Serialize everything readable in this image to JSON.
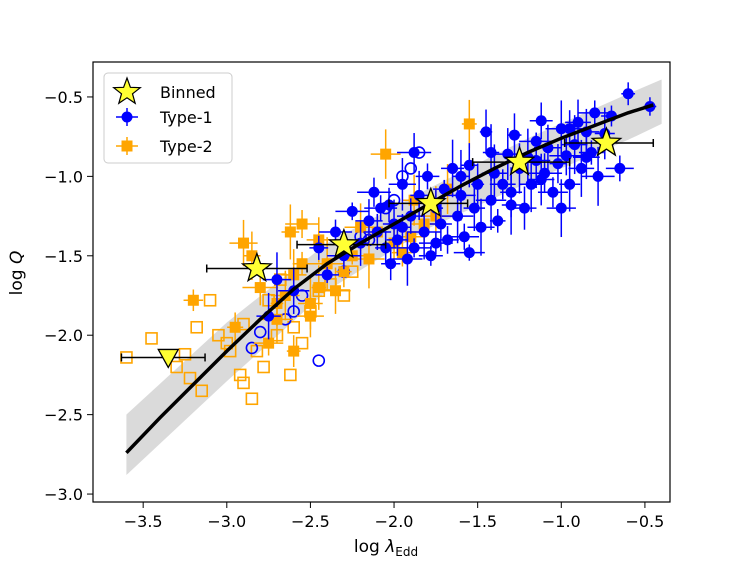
{
  "chart_data": {
    "type": "scatter",
    "title": "",
    "xlabel_text": "log",
    "xlabel_symbol": "λ",
    "xlabel_subscript": "Edd",
    "ylabel_text": "log",
    "ylabel_symbol": "Q",
    "xlim": [
      -3.8,
      -0.35
    ],
    "ylim": [
      -3.05,
      -0.28
    ],
    "x_ticks": [
      -3.5,
      -3.0,
      -2.5,
      -2.0,
      -1.5,
      -1.0,
      -0.5
    ],
    "x_tick_labels": [
      "−3.5",
      "−3.0",
      "−2.5",
      "−2.0",
      "−1.5",
      "−1.0",
      "−0.5"
    ],
    "y_ticks": [
      -3.0,
      -2.5,
      -2.0,
      -1.5,
      -1.0,
      -0.5
    ],
    "y_tick_labels": [
      "−3.0",
      "−2.5",
      "−2.0",
      "−1.5",
      "−1.0",
      "−0.5"
    ],
    "legend_position": "upper-left",
    "legend": [
      "Binned",
      "Type-1",
      "Type-2"
    ],
    "colors": {
      "type1": "#0000ff",
      "type2": "#ffa500",
      "binned": "#ffff33",
      "fit": "#000000",
      "band": "#d3d3d3"
    },
    "fit_curve": {
      "x": [
        -3.6,
        -3.4,
        -3.2,
        -3.0,
        -2.8,
        -2.6,
        -2.4,
        -2.2,
        -2.0,
        -1.8,
        -1.6,
        -1.4,
        -1.2,
        -1.0,
        -0.8,
        -0.6,
        -0.45
      ],
      "y": [
        -2.74,
        -2.52,
        -2.31,
        -2.1,
        -1.9,
        -1.71,
        -1.55,
        -1.42,
        -1.3,
        -1.18,
        -1.06,
        -0.95,
        -0.85,
        -0.76,
        -0.68,
        -0.6,
        -0.55
      ]
    },
    "band": {
      "x": [
        -3.6,
        -3.0,
        -2.4,
        -1.8,
        -1.2,
        -0.6,
        -0.4
      ],
      "upper": [
        -2.5,
        -1.92,
        -1.42,
        -1.08,
        -0.76,
        -0.48,
        -0.39
      ],
      "lower": [
        -2.88,
        -2.29,
        -1.72,
        -1.33,
        -1.04,
        -0.77,
        -0.67
      ]
    },
    "binned": [
      {
        "x": -2.82,
        "y": -1.58,
        "xerr": [
          0.3,
          0.3
        ]
      },
      {
        "x": -2.3,
        "y": -1.43,
        "xerr": [
          0.28,
          0.25
        ]
      },
      {
        "x": -1.78,
        "y": -1.17,
        "xerr": [
          0.25,
          0.22
        ]
      },
      {
        "x": -1.25,
        "y": -0.91,
        "xerr": [
          0.28,
          0.3
        ]
      },
      {
        "x": -0.73,
        "y": -0.79,
        "xerr": [
          0.25,
          0.28
        ]
      }
    ],
    "upper_limit": {
      "x": -3.35,
      "y": -2.14,
      "xerr": [
        0.28,
        0.22
      ]
    },
    "type1_filled": [
      [
        -0.47,
        -0.56
      ],
      [
        -0.6,
        -0.48
      ],
      [
        -0.7,
        -0.62
      ],
      [
        -0.74,
        -0.73
      ],
      [
        -0.8,
        -0.6
      ],
      [
        -0.82,
        -0.85
      ],
      [
        -0.85,
        -0.72
      ],
      [
        -0.88,
        -0.95
      ],
      [
        -0.9,
        -0.66
      ],
      [
        -0.92,
        -0.8
      ],
      [
        -0.95,
        -1.05
      ],
      [
        -0.97,
        -0.87
      ],
      [
        -1.0,
        -0.7
      ],
      [
        -1.02,
        -0.92
      ],
      [
        -1.05,
        -1.1
      ],
      [
        -1.08,
        -0.82
      ],
      [
        -1.1,
        -0.98
      ],
      [
        -1.12,
        -0.65
      ],
      [
        -1.15,
        -0.78
      ],
      [
        -1.18,
        -1.05
      ],
      [
        -1.2,
        -0.88
      ],
      [
        -1.22,
        -1.2
      ],
      [
        -1.25,
        -0.95
      ],
      [
        -1.28,
        -0.74
      ],
      [
        -1.3,
        -1.1
      ],
      [
        -1.32,
        -0.86
      ],
      [
        -1.35,
        -1.05
      ],
      [
        -1.38,
        -1.28
      ],
      [
        -1.4,
        -0.98
      ],
      [
        -1.42,
        -1.15
      ],
      [
        -1.45,
        -0.72
      ],
      [
        -1.48,
        -1.32
      ],
      [
        -1.5,
        -1.05
      ],
      [
        -1.52,
        -1.2
      ],
      [
        -1.55,
        -0.93
      ],
      [
        -1.58,
        -1.38
      ],
      [
        -1.6,
        -1.12
      ],
      [
        -1.62,
        -1.25
      ],
      [
        -1.65,
        -0.95
      ],
      [
        -1.68,
        -1.4
      ],
      [
        -1.7,
        -1.08
      ],
      [
        -1.72,
        -1.3
      ],
      [
        -1.75,
        -1.2
      ],
      [
        -1.78,
        -1.5
      ],
      [
        -1.8,
        -1.0
      ],
      [
        -1.82,
        -1.35
      ],
      [
        -1.85,
        -1.12
      ],
      [
        -1.88,
        -1.45
      ],
      [
        -1.9,
        -1.25
      ],
      [
        -1.92,
        -1.52
      ],
      [
        -1.95,
        -1.05
      ],
      [
        -1.98,
        -1.4
      ],
      [
        -2.0,
        -1.3
      ],
      [
        -2.03,
        -1.18
      ],
      [
        -2.05,
        -1.45
      ],
      [
        -2.1,
        -1.35
      ],
      [
        -2.12,
        -1.1
      ],
      [
        -2.15,
        -1.28
      ],
      [
        -2.2,
        -1.42
      ],
      [
        -2.25,
        -1.22
      ],
      [
        -2.3,
        -1.5
      ],
      [
        -2.35,
        -1.35
      ],
      [
        -2.4,
        -1.62
      ],
      [
        -2.45,
        -1.45
      ],
      [
        -2.6,
        -1.72
      ],
      [
        -2.7,
        -1.65
      ],
      [
        -2.75,
        -1.88
      ],
      [
        -1.3,
        -1.18
      ],
      [
        -1.0,
        -1.2
      ],
      [
        -0.95,
        -0.7
      ],
      [
        -0.85,
        -0.88
      ],
      [
        -1.15,
        -0.9
      ],
      [
        -1.55,
        -1.48
      ],
      [
        -1.75,
        -1.42
      ],
      [
        -2.02,
        -1.55
      ],
      [
        -1.88,
        -0.85
      ],
      [
        -0.65,
        -0.95
      ],
      [
        -1.42,
        -0.85
      ],
      [
        -1.12,
        -1.02
      ],
      [
        -0.78,
        -1.0
      ],
      [
        -1.6,
        -1.0
      ],
      [
        -2.08,
        -1.2
      ],
      [
        -1.95,
        -1.32
      ]
    ],
    "type1_open": [
      [
        -1.85,
        -0.85
      ],
      [
        -1.9,
        -0.95
      ],
      [
        -1.95,
        -1.0
      ],
      [
        -2.0,
        -1.15
      ],
      [
        -2.05,
        -1.2
      ],
      [
        -2.15,
        -1.4
      ],
      [
        -2.2,
        -1.38
      ],
      [
        -2.3,
        -1.6
      ],
      [
        -2.55,
        -1.75
      ],
      [
        -2.6,
        -1.85
      ],
      [
        -2.65,
        -1.9
      ],
      [
        -2.85,
        -2.08
      ],
      [
        -2.45,
        -2.16
      ],
      [
        -2.8,
        -1.98
      ]
    ],
    "type2_filled": [
      [
        -1.55,
        -0.67
      ],
      [
        -1.68,
        -1.08
      ],
      [
        -1.75,
        -1.25
      ],
      [
        -1.82,
        -1.3
      ],
      [
        -1.9,
        -1.38
      ],
      [
        -1.95,
        -1.48
      ],
      [
        -2.05,
        -0.86
      ],
      [
        -2.1,
        -1.35
      ],
      [
        -2.2,
        -1.32
      ],
      [
        -2.25,
        -1.5
      ],
      [
        -2.3,
        -1.6
      ],
      [
        -2.4,
        -1.55
      ],
      [
        -2.45,
        -1.7
      ],
      [
        -2.5,
        -1.8
      ],
      [
        -2.55,
        -1.3
      ],
      [
        -2.6,
        -1.62
      ],
      [
        -2.65,
        -1.75
      ],
      [
        -2.7,
        -1.9
      ],
      [
        -2.75,
        -2.05
      ],
      [
        -2.8,
        -1.7
      ],
      [
        -2.85,
        -1.5
      ],
      [
        -2.9,
        -1.42
      ],
      [
        -2.95,
        -1.95
      ],
      [
        -2.6,
        -2.1
      ],
      [
        -2.5,
        -1.88
      ],
      [
        -2.35,
        -1.72
      ],
      [
        -2.15,
        -1.52
      ],
      [
        -2.0,
        -1.42
      ],
      [
        -3.2,
        -1.78
      ],
      [
        -2.55,
        -1.55
      ],
      [
        -2.7,
        -1.8
      ],
      [
        -2.62,
        -1.35
      ],
      [
        -2.45,
        -1.4
      ],
      [
        -1.88,
        -1.15
      ]
    ],
    "type2_open": [
      [
        -3.6,
        -2.14
      ],
      [
        -3.45,
        -2.02
      ],
      [
        -3.3,
        -2.2
      ],
      [
        -3.22,
        -2.27
      ],
      [
        -3.18,
        -1.95
      ],
      [
        -3.1,
        -1.78
      ],
      [
        -3.05,
        -2.0
      ],
      [
        -2.98,
        -2.1
      ],
      [
        -2.92,
        -2.25
      ],
      [
        -2.85,
        -2.4
      ],
      [
        -2.78,
        -2.2
      ],
      [
        -2.7,
        -2.0
      ],
      [
        -2.62,
        -2.25
      ],
      [
        -2.55,
        -2.05
      ],
      [
        -2.5,
        -1.85
      ],
      [
        -2.45,
        -1.72
      ],
      [
        -2.38,
        -1.68
      ],
      [
        -2.3,
        -1.75
      ],
      [
        -2.25,
        -1.6
      ],
      [
        -3.0,
        -2.05
      ],
      [
        -2.9,
        -2.3
      ],
      [
        -3.15,
        -2.35
      ],
      [
        -3.25,
        -2.12
      ],
      [
        -2.82,
        -2.1
      ],
      [
        -2.68,
        -1.65
      ],
      [
        -2.75,
        -1.78
      ],
      [
        -2.6,
        -1.95
      ],
      [
        -2.9,
        -1.93
      ]
    ]
  }
}
